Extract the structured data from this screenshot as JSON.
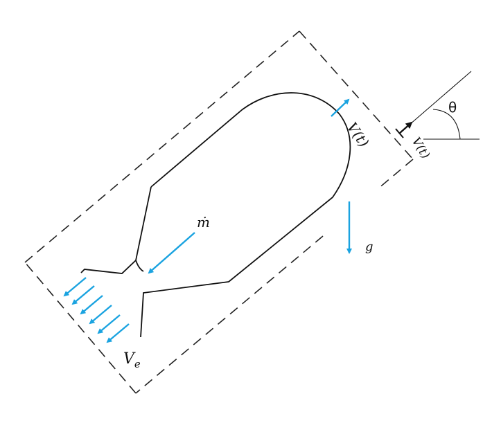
{
  "diagram": {
    "labels": {
      "velocity_body": "V(t)",
      "velocity_inset": "V(t)",
      "mass_flow": "ṁ",
      "gravity": "g",
      "exit_velocity_main": "V",
      "exit_velocity_sub": "e",
      "angle": "θ"
    },
    "colors": {
      "arrow": "#1aa3e0",
      "outline": "#111111",
      "control_volume": "#222222"
    }
  }
}
